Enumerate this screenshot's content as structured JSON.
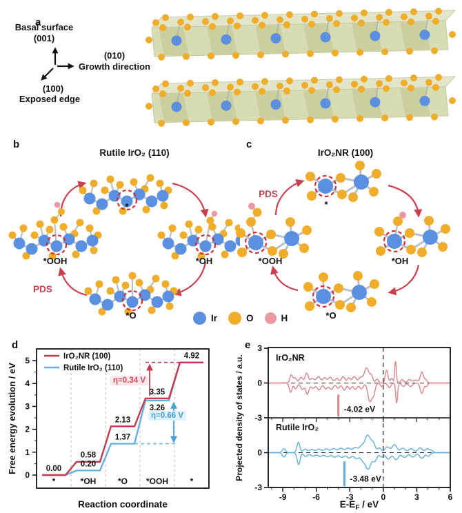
{
  "panels": {
    "a": {
      "label": "a",
      "axes": {
        "basal_1": "Basal surface",
        "basal_2": "(001)",
        "growth_1": "(010)",
        "growth_2": "Growth direction",
        "edge_1": "(100)",
        "edge_2": "Exposed edge"
      }
    },
    "b": {
      "label": "b",
      "title": "Rutile IrO₂ (110)",
      "pds": "PDS",
      "states": {
        "free": "*",
        "oh": "*OH",
        "o": "*O",
        "ooh": "*OOH"
      }
    },
    "c": {
      "label": "c",
      "title": "IrO₂NR (100)",
      "pds": "PDS",
      "states": {
        "free": "*",
        "oh": "*OH",
        "o": "*O",
        "ooh": "*OOH"
      }
    },
    "d": {
      "label": "d"
    },
    "e": {
      "label": "e"
    },
    "legend": {
      "items": [
        {
          "label": "Ir",
          "color": "#5b8fe0"
        },
        {
          "label": "O",
          "color": "#f0ad2a"
        },
        {
          "label": "H",
          "color": "#ec99a3"
        }
      ]
    }
  },
  "chart_data": [
    {
      "id": "free_energy_diagram",
      "type": "step-line",
      "xlabel": "Reaction coordinate",
      "ylabel": "Free energy evolution / eV",
      "categories": [
        "*",
        "*OH",
        "*O",
        "*OOH",
        "*"
      ],
      "yticks": [
        0,
        1,
        2,
        3,
        4,
        5
      ],
      "ylim": [
        -0.6,
        5.5
      ],
      "grid": false,
      "legend_position": "top-left",
      "series": [
        {
          "name": "IrO₂NR (100)",
          "color": "#c23a50",
          "label_color": "#e4838b",
          "values": [
            0.0,
            0.58,
            2.13,
            3.35,
            4.92
          ],
          "value_labels": [
            "0.00",
            "0.58",
            "2.13",
            "3.35",
            "4.92"
          ],
          "label_dy": [
            -6,
            -6,
            -6,
            -6,
            -6
          ]
        },
        {
          "name": "Rutile IrO₂ (110)",
          "color": "#66aedd",
          "label_color": "#6db7e3",
          "values": [
            0.0,
            0.2,
            1.37,
            3.26,
            4.92
          ],
          "value_labels": [
            null,
            "0.20",
            "1.37",
            "3.26",
            null
          ],
          "label_dy": [
            0,
            -6,
            -6,
            14,
            0
          ]
        }
      ],
      "annotations": {
        "eta_red": "η=0.34 V",
        "eta_blue": "η=0.66 V"
      }
    },
    {
      "id": "pdos",
      "type": "line",
      "ylabel": "Projected density of states / a.u.",
      "xlabel_parts": {
        "pre": "E-E",
        "sub": "F",
        "post": " / eV"
      },
      "xticks": [
        -9,
        -6,
        -3,
        0,
        3,
        6
      ],
      "xlim": [
        -10.3,
        6
      ],
      "panels": [
        {
          "name": "IrO₂NR",
          "color": "#d8858b",
          "yticks": [
            3,
            0,
            -3
          ],
          "ylim": [
            -3,
            3
          ],
          "marker": {
            "x": -4.02,
            "label": "-4.02 eV",
            "y_from": -1.0,
            "y_to": -2.9
          },
          "peaks_up": [
            [
              -8.25,
              0.7,
              0.12
            ],
            [
              -7.9,
              0.45,
              0.14
            ],
            [
              -7.35,
              0.5,
              0.16
            ],
            [
              -6.85,
              0.85,
              0.14
            ],
            [
              -6.35,
              0.4,
              0.18
            ],
            [
              -5.8,
              0.55,
              0.18
            ],
            [
              -5.25,
              0.45,
              0.16
            ],
            [
              -4.75,
              0.5,
              0.18
            ],
            [
              -4.15,
              0.4,
              0.16
            ],
            [
              -3.6,
              0.55,
              0.16
            ],
            [
              -3.1,
              0.45,
              0.14
            ],
            [
              -2.6,
              0.55,
              0.18
            ],
            [
              -2.05,
              0.45,
              0.16
            ],
            [
              -1.5,
              1.3,
              0.22
            ],
            [
              -1.05,
              0.55,
              0.14
            ],
            [
              -0.55,
              0.35,
              0.12
            ],
            [
              0.3,
              1.1,
              0.12
            ],
            [
              0.75,
              0.4,
              0.12
            ],
            [
              1.1,
              1.95,
              0.07
            ],
            [
              1.7,
              0.3,
              0.14
            ],
            [
              2.35,
              0.3,
              0.18
            ],
            [
              2.9,
              0.25,
              0.18
            ],
            [
              3.45,
              0.95,
              0.14
            ],
            [
              3.8,
              0.3,
              0.12
            ]
          ],
          "peaks_down": [
            [
              -8.3,
              0.8,
              0.12
            ],
            [
              -7.85,
              0.5,
              0.14
            ],
            [
              -7.25,
              0.55,
              0.16
            ],
            [
              -6.8,
              0.95,
              0.14
            ],
            [
              -6.3,
              0.45,
              0.18
            ],
            [
              -5.75,
              0.6,
              0.18
            ],
            [
              -5.15,
              0.5,
              0.16
            ],
            [
              -4.65,
              0.55,
              0.18
            ],
            [
              -4.05,
              0.45,
              0.16
            ],
            [
              -3.5,
              0.6,
              0.16
            ],
            [
              -3.0,
              0.5,
              0.14
            ],
            [
              -2.5,
              0.55,
              0.18
            ],
            [
              -1.95,
              0.5,
              0.16
            ],
            [
              -1.2,
              1.6,
              0.18
            ],
            [
              -0.85,
              0.9,
              0.13
            ],
            [
              -0.15,
              0.3,
              0.12
            ],
            [
              0.55,
              0.4,
              0.14
            ],
            [
              1.2,
              1.75,
              0.08
            ],
            [
              1.8,
              0.3,
              0.14
            ],
            [
              2.45,
              0.3,
              0.18
            ],
            [
              3.45,
              0.9,
              0.14
            ],
            [
              3.85,
              0.3,
              0.12
            ]
          ]
        },
        {
          "name": "Rutile IrO₂",
          "color": "#5fb0dc",
          "yticks": [
            0,
            -3
          ],
          "ylim": [
            -3,
            3
          ],
          "marker": {
            "x": -3.48,
            "label": "-3.48 eV",
            "y_from": -0.75,
            "y_to": -2.9
          },
          "peaks_up": [
            [
              -8.9,
              0.35,
              0.14
            ],
            [
              -7.6,
              0.9,
              0.13
            ],
            [
              -7.0,
              0.3,
              0.18
            ],
            [
              -6.4,
              0.28,
              0.22
            ],
            [
              -5.75,
              0.3,
              0.22
            ],
            [
              -5.1,
              0.32,
              0.22
            ],
            [
              -4.45,
              0.35,
              0.22
            ],
            [
              -3.8,
              0.38,
              0.22
            ],
            [
              -3.15,
              0.4,
              0.22
            ],
            [
              -2.5,
              0.45,
              0.22
            ],
            [
              -1.95,
              0.5,
              0.2
            ],
            [
              -1.4,
              1.5,
              0.25
            ],
            [
              -0.9,
              0.75,
              0.18
            ],
            [
              -0.35,
              0.4,
              0.18
            ],
            [
              0.35,
              0.5,
              0.2
            ],
            [
              1.0,
              0.7,
              0.22
            ],
            [
              1.75,
              0.38,
              0.22
            ],
            [
              2.5,
              0.35,
              0.22
            ],
            [
              3.3,
              0.42,
              0.2
            ],
            [
              3.95,
              0.35,
              0.18
            ],
            [
              4.35,
              0.2,
              0.14
            ]
          ],
          "peaks_down": [
            [
              -8.9,
              0.38,
              0.14
            ],
            [
              -7.58,
              1.05,
              0.13
            ],
            [
              -6.95,
              0.32,
              0.18
            ],
            [
              -6.3,
              0.3,
              0.22
            ],
            [
              -5.65,
              0.32,
              0.22
            ],
            [
              -5.0,
              0.35,
              0.22
            ],
            [
              -4.35,
              0.38,
              0.22
            ],
            [
              -3.7,
              0.4,
              0.22
            ],
            [
              -3.05,
              0.45,
              0.22
            ],
            [
              -2.4,
              0.5,
              0.22
            ],
            [
              -1.85,
              0.55,
              0.2
            ],
            [
              -1.35,
              1.4,
              0.25
            ],
            [
              -0.75,
              0.7,
              0.18
            ],
            [
              -0.15,
              0.38,
              0.18
            ],
            [
              0.45,
              0.55,
              0.2
            ],
            [
              1.15,
              0.6,
              0.22
            ],
            [
              1.9,
              0.42,
              0.22
            ],
            [
              2.65,
              0.38,
              0.22
            ],
            [
              3.45,
              0.48,
              0.2
            ],
            [
              4.05,
              0.3,
              0.18
            ]
          ]
        }
      ]
    }
  ]
}
